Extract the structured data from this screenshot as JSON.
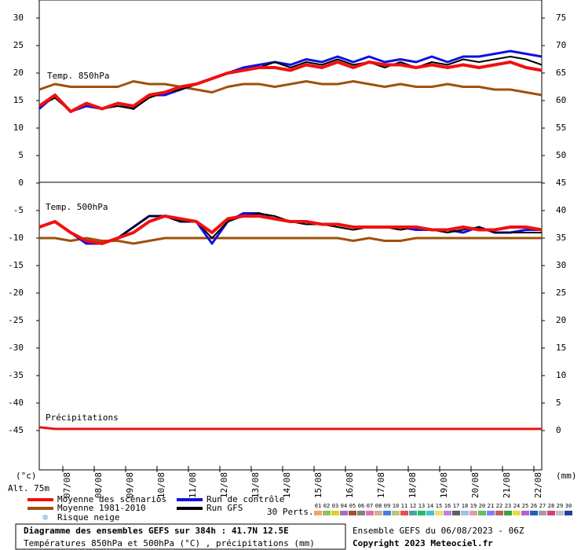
{
  "chart_data": [
    {
      "type": "line",
      "label": "Temp. 850hPa",
      "x": [
        0,
        12,
        24,
        36,
        48,
        60,
        72,
        84,
        96,
        108,
        120,
        132,
        144,
        156,
        168,
        180,
        192,
        204,
        216,
        228,
        240,
        252,
        264,
        276,
        288,
        300,
        312,
        324,
        336,
        348,
        360,
        372,
        384
      ],
      "xlim": [
        0,
        384
      ],
      "ylim": [
        0,
        33
      ],
      "yticks": [
        5,
        10,
        15,
        20,
        25,
        30
      ],
      "y2lim": [
        45,
        78
      ],
      "y2ticks": [
        50,
        55,
        60,
        65,
        70,
        75
      ],
      "series": [
        {
          "name": "Moyenne 1981-2010",
          "color": "#a0500a",
          "width": 3,
          "values": [
            17,
            18,
            17.5,
            17.5,
            17.5,
            17.5,
            18.5,
            18,
            18,
            17.5,
            17,
            16.5,
            17.5,
            18,
            18,
            17.5,
            18,
            18.5,
            18,
            18,
            18.5,
            18,
            17.5,
            18,
            17.5,
            17.5,
            18,
            17.5,
            17.5,
            17,
            17,
            16.5,
            16
          ]
        },
        {
          "name": "Run de contrôle",
          "color": "#1010e0",
          "width": 3,
          "values": [
            13.5,
            16,
            13,
            14,
            13.5,
            14.5,
            13.5,
            16,
            16,
            17,
            18,
            19,
            20,
            21,
            21.5,
            22,
            21.5,
            22.5,
            22,
            23,
            22,
            23,
            22,
            22.5,
            22,
            23,
            22,
            23,
            23,
            23.5,
            24,
            23.5,
            23
          ]
        },
        {
          "name": "Run GFS",
          "color": "#000000",
          "width": 2,
          "values": [
            14,
            15.5,
            13,
            14.5,
            13.5,
            14,
            13.5,
            15.5,
            16.5,
            17,
            18,
            19,
            20,
            20.5,
            21,
            22,
            21,
            22,
            21.5,
            22.5,
            21.5,
            22,
            21,
            22,
            21,
            22,
            21.5,
            22.5,
            22,
            22.5,
            23,
            22.5,
            21.5
          ]
        },
        {
          "name": "Moyenne des scénarios",
          "color": "#f01010",
          "width": 4,
          "values": [
            14,
            16,
            13,
            14.5,
            13.5,
            14.5,
            14,
            16,
            16.5,
            17.5,
            18,
            19,
            20,
            20.5,
            21,
            21,
            20.5,
            21.5,
            21,
            22,
            21,
            22,
            21.5,
            21.5,
            21,
            21.5,
            21,
            21.5,
            21,
            21.5,
            22,
            21,
            20.5
          ]
        }
      ]
    },
    {
      "type": "line",
      "label": "Temp. 500hPa",
      "x": [
        0,
        12,
        24,
        36,
        48,
        60,
        72,
        84,
        96,
        108,
        120,
        132,
        144,
        156,
        168,
        180,
        192,
        204,
        216,
        228,
        240,
        252,
        264,
        276,
        288,
        300,
        312,
        324,
        336,
        348,
        360,
        372,
        384
      ],
      "xlim": [
        0,
        384
      ],
      "xticks": [
        {
          "value": 18,
          "label": "07/08"
        },
        {
          "value": 42,
          "label": "08/08"
        },
        {
          "value": 66,
          "label": "09/08"
        },
        {
          "value": 90,
          "label": "10/08"
        },
        {
          "value": 114,
          "label": "11/08"
        },
        {
          "value": 138,
          "label": "12/08"
        },
        {
          "value": 162,
          "label": "13/08"
        },
        {
          "value": 186,
          "label": "14/08"
        },
        {
          "value": 210,
          "label": "15/08"
        },
        {
          "value": 234,
          "label": "16/08"
        },
        {
          "value": 258,
          "label": "17/08"
        },
        {
          "value": 282,
          "label": "18/08"
        },
        {
          "value": 306,
          "label": "19/08"
        },
        {
          "value": 330,
          "label": "20/08"
        },
        {
          "value": 354,
          "label": "21/08"
        },
        {
          "value": 378,
          "label": "22/08"
        }
      ],
      "ylabel": "(°c)",
      "y2label": "(mm)",
      "ylim": [
        -52,
        0
      ],
      "yticks": [
        0,
        -5,
        -10,
        -15,
        -20,
        -25,
        -30,
        -35,
        -40,
        -45
      ],
      "y2lim": [
        -7,
        45
      ],
      "y2ticks": [
        0,
        5,
        10,
        15,
        20,
        25,
        30,
        35,
        40,
        45
      ],
      "series": [
        {
          "color": "#a0500a",
          "width": 3,
          "values": [
            -10,
            -10,
            -10.5,
            -10,
            -10.5,
            -10.5,
            -11,
            -10.5,
            -10,
            -10,
            -10,
            -10,
            -10,
            -10,
            -10,
            -10,
            -10,
            -10,
            -10,
            -10,
            -10.5,
            -10,
            -10.5,
            -10.5,
            -10,
            -10,
            -10,
            -10,
            -10,
            -10,
            -10,
            -10,
            -10
          ]
        },
        {
          "color": "#1010e0",
          "width": 3,
          "values": [
            -8,
            -7,
            -9,
            -11,
            -11,
            -10,
            -8,
            -6,
            -6,
            -7,
            -7,
            -11,
            -7,
            -5.5,
            -5.5,
            -6.5,
            -7,
            -7,
            -7.5,
            -7.5,
            -8,
            -8,
            -8,
            -8,
            -8.5,
            -8.5,
            -8.5,
            -9,
            -8,
            -9,
            -9,
            -8.5,
            -8.5
          ]
        },
        {
          "color": "#000000",
          "width": 2,
          "values": [
            -8,
            -7,
            -9,
            -10.5,
            -11,
            -10,
            -8,
            -6,
            -6,
            -7,
            -7,
            -10,
            -7,
            -6,
            -5.5,
            -6,
            -7,
            -7.5,
            -7.5,
            -8,
            -8.5,
            -8,
            -8,
            -8.5,
            -8,
            -8.5,
            -9,
            -8.5,
            -8,
            -9,
            -9,
            -9,
            -9
          ]
        },
        {
          "color": "#f01010",
          "width": 4,
          "values": [
            -8,
            -7,
            -9,
            -10.5,
            -11,
            -10,
            -9,
            -7,
            -6,
            -6.5,
            -7,
            -9,
            -6.5,
            -6,
            -6,
            -6.5,
            -7,
            -7,
            -7.5,
            -7.5,
            -8,
            -8,
            -8,
            -8,
            -8,
            -8.5,
            -8.5,
            -8,
            -8.5,
            -8.5,
            -8,
            -8,
            -8.5
          ]
        },
        {
          "name": "Précipitations",
          "axis": "y2",
          "color": "#f01010",
          "width": 3,
          "values": [
            0.6,
            0.3,
            0.3,
            0.3,
            0.3,
            0.3,
            0.3,
            0.3,
            0.3,
            0.3,
            0.3,
            0.3,
            0.3,
            0.3,
            0.3,
            0.3,
            0.3,
            0.3,
            0.3,
            0.3,
            0.3,
            0.3,
            0.3,
            0.3,
            0.3,
            0.3,
            0.3,
            0.3,
            0.3,
            0.3,
            0.3,
            0.3,
            0.3
          ]
        }
      ]
    }
  ],
  "note": "Alt. 75m",
  "snow": {
    "label": "Risque neige",
    "color": "#60a8e0"
  },
  "perturbations": {
    "label": "30 Perts.",
    "items": [
      {
        "label": "01",
        "color": "#f4a460"
      },
      {
        "label": "02",
        "color": "#90c060"
      },
      {
        "label": "03",
        "color": "#e0d020"
      },
      {
        "label": "04",
        "color": "#a070c0"
      },
      {
        "label": "05",
        "color": "#a0522d"
      },
      {
        "label": "06",
        "color": "#808080"
      },
      {
        "label": "07",
        "color": "#e070b0"
      },
      {
        "label": "08",
        "color": "#d2b48c"
      },
      {
        "label": "09",
        "color": "#4080e0"
      },
      {
        "label": "10",
        "color": "#c0c080"
      },
      {
        "label": "11",
        "color": "#e05050"
      },
      {
        "label": "12",
        "color": "#50a0a0"
      },
      {
        "label": "13",
        "color": "#20c060"
      },
      {
        "label": "14",
        "color": "#40c0e0"
      },
      {
        "label": "15",
        "color": "#f0e060"
      },
      {
        "label": "16",
        "color": "#c080e0"
      },
      {
        "label": "17",
        "color": "#606060"
      },
      {
        "label": "18",
        "color": "#a0c0e0"
      },
      {
        "label": "19",
        "color": "#e0a0a0"
      },
      {
        "label": "20",
        "color": "#60c060"
      },
      {
        "label": "21",
        "color": "#8080ff"
      },
      {
        "label": "22",
        "color": "#c06060"
      },
      {
        "label": "23",
        "color": "#40a040"
      },
      {
        "label": "24",
        "color": "#e0e040"
      },
      {
        "label": "25",
        "color": "#b060d0"
      },
      {
        "label": "26",
        "color": "#2060c0"
      },
      {
        "label": "27",
        "color": "#a0a0a0"
      },
      {
        "label": "28",
        "color": "#d04080"
      },
      {
        "label": "29",
        "color": "#c0c0c0"
      },
      {
        "label": "30",
        "color": "#2040a0"
      }
    ]
  },
  "footer": {
    "title": "Diagramme des ensembles GEFS sur 384h : 41.7N 12.5E",
    "subtitle": "Températures 850hPa et 500hPa (°C) , précipitations (mm)",
    "run": "Ensemble GEFS du 06/08/2023 - 06Z",
    "copyright": "Copyright 2023 Meteociel.fr"
  }
}
